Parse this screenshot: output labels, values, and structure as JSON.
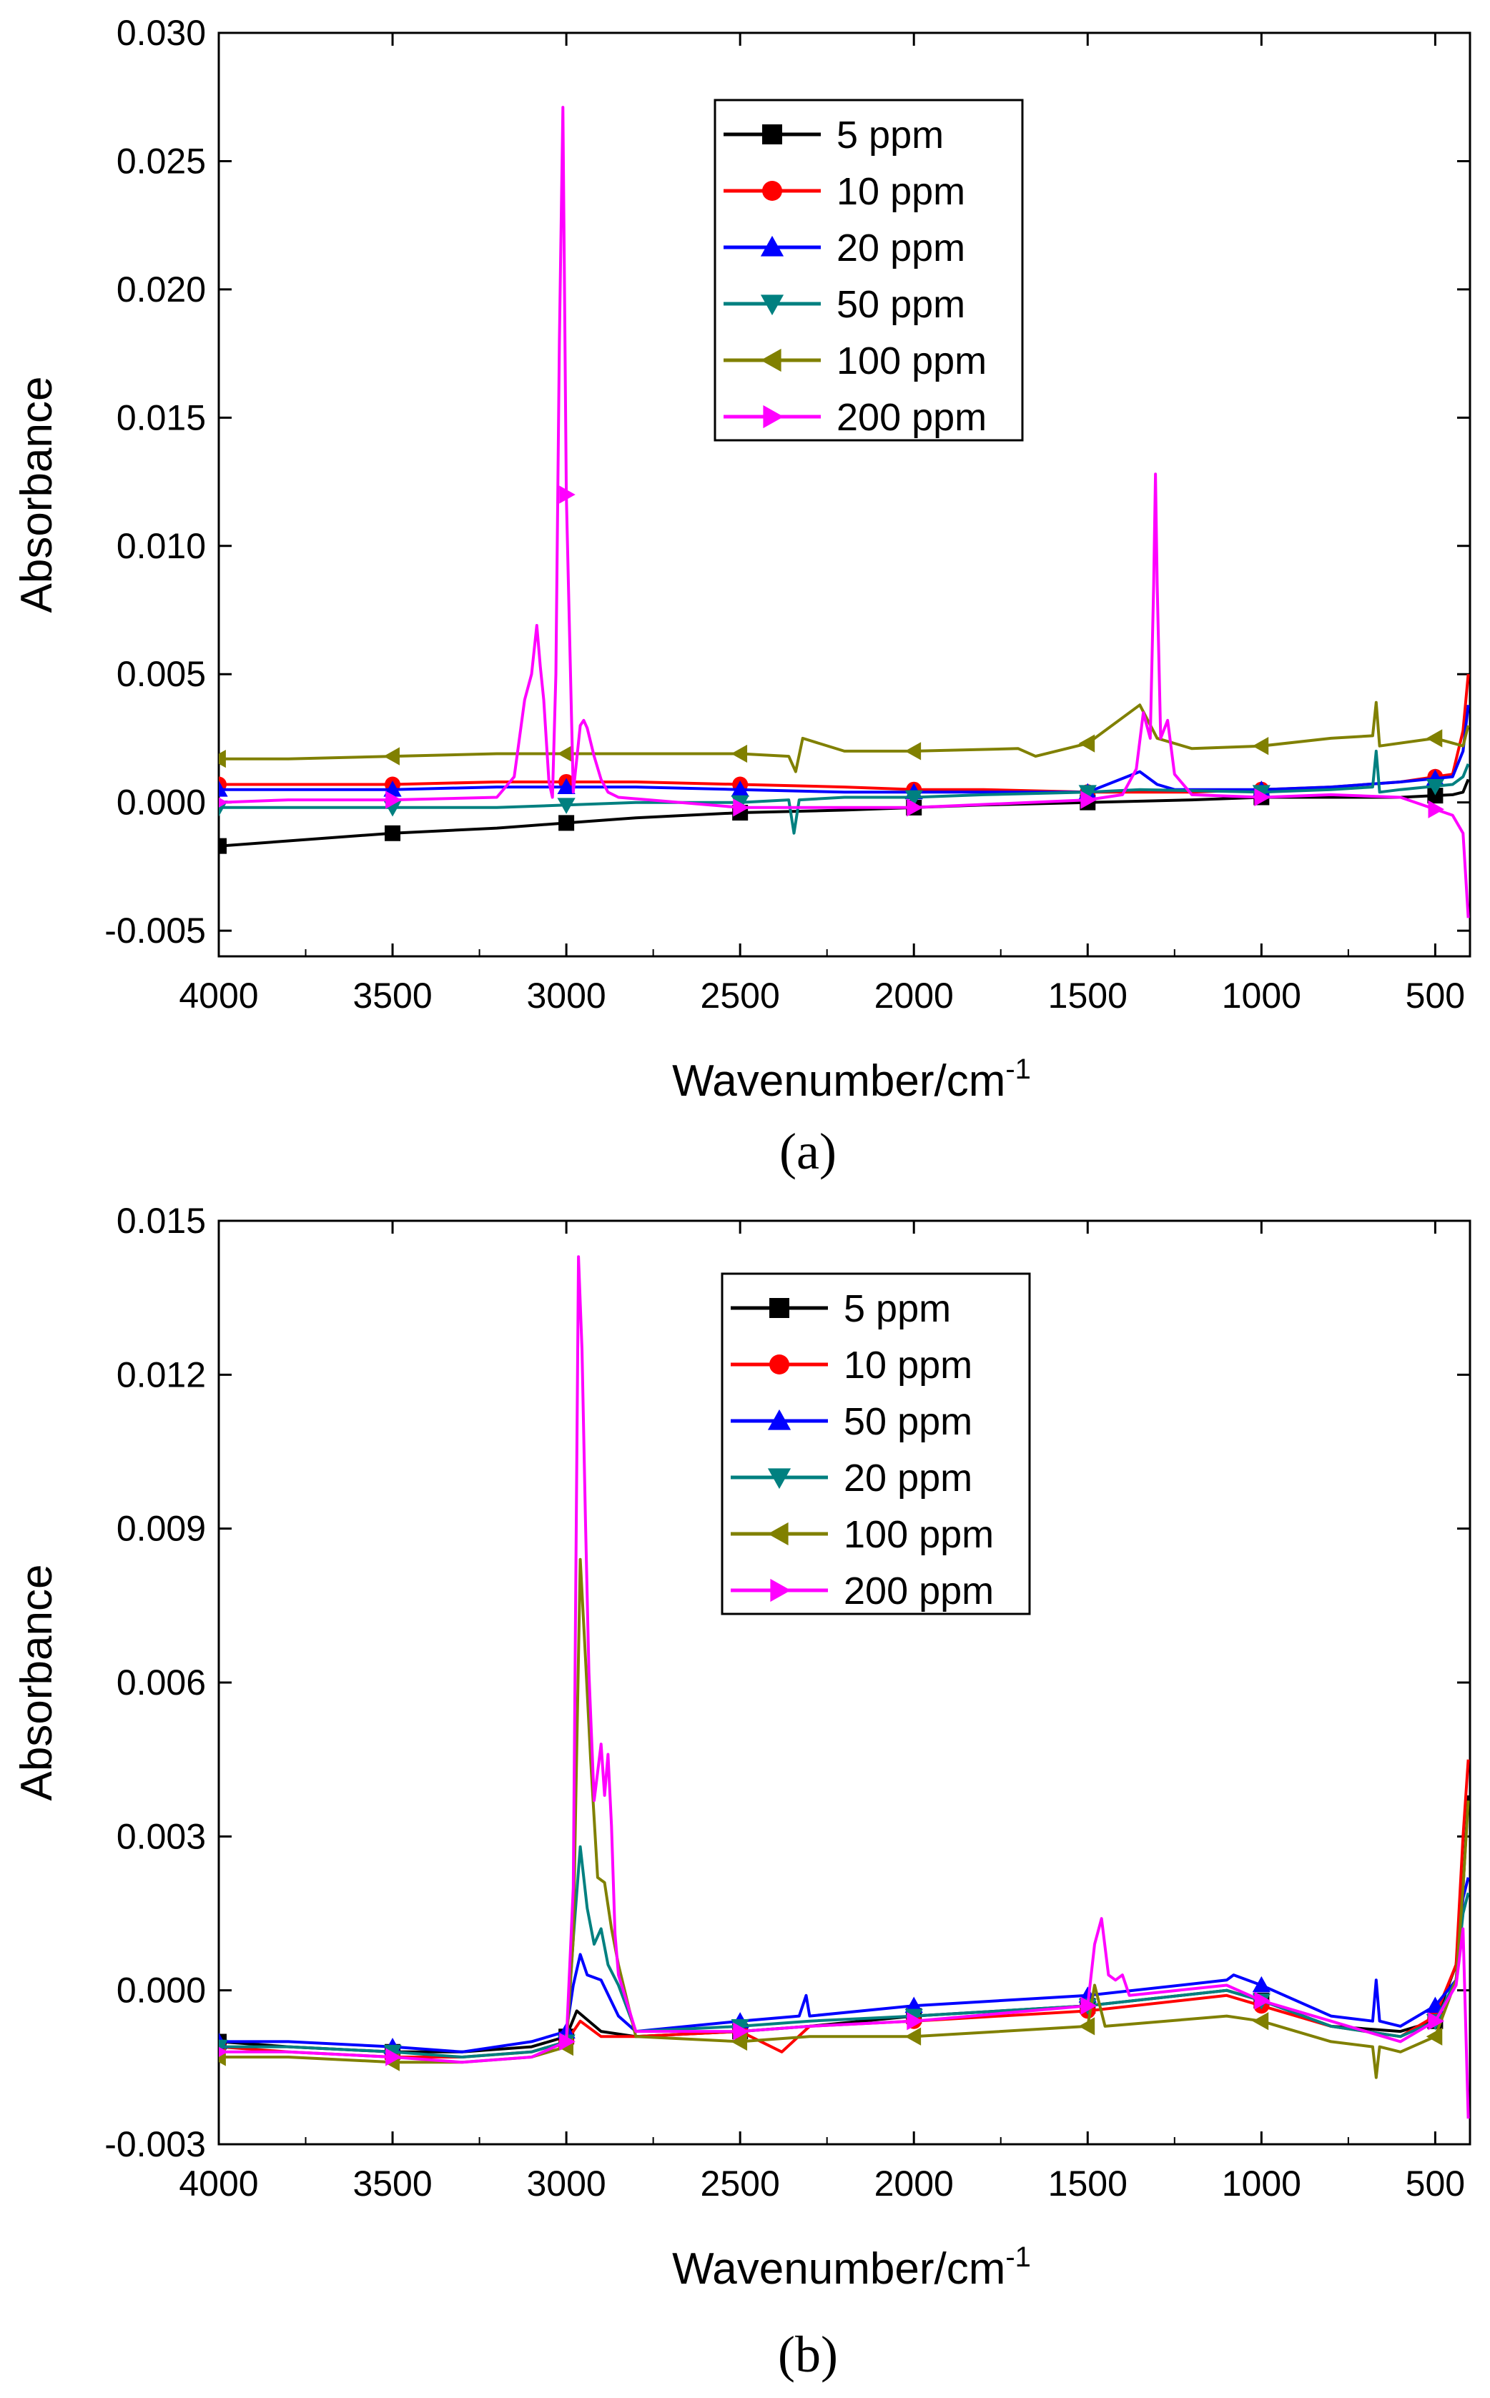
{
  "figure": {
    "caption_a": "(a)",
    "caption_b": "(b)"
  },
  "chart_data": [
    {
      "type": "line",
      "panel": "(a)",
      "xlabel": "Wavenumber/cm",
      "xlabel_sup": "-1",
      "ylabel": "Absorbance",
      "xlim": [
        4000,
        400
      ],
      "ylim": [
        -0.006,
        0.03
      ],
      "xticks": [
        4000,
        3500,
        3000,
        2500,
        2000,
        1500,
        1000,
        500
      ],
      "xtick_labels": [
        "4000",
        "3500",
        "3000",
        "2500",
        "2000",
        "1500",
        "1000",
        "500"
      ],
      "yticks": [
        -0.005,
        0,
        0.005,
        0.01,
        0.015,
        0.02,
        0.025,
        0.03
      ],
      "ytick_labels": [
        "-0.005",
        "0.000",
        "0.005",
        "0.010",
        "0.015",
        "0.020",
        "0.025",
        "0.030"
      ],
      "legend_position": "top-center",
      "series": [
        {
          "name": "5 ppm",
          "color": "#000000",
          "marker": "square",
          "x": [
            4000,
            3800,
            3500,
            3200,
            3000,
            2800,
            2500,
            2200,
            2000,
            1800,
            1500,
            1200,
            1000,
            800,
            600,
            450,
            420,
            405
          ],
          "y": [
            -0.0017,
            -0.0015,
            -0.0012,
            -0.001,
            -0.0008,
            -0.0006,
            -0.0004,
            -0.0003,
            -0.0002,
            -0.0001,
            0.0,
            0.0001,
            0.0002,
            0.0002,
            0.0002,
            0.0003,
            0.0004,
            0.0009
          ]
        },
        {
          "name": "10 ppm",
          "color": "#ff0000",
          "marker": "circle",
          "x": [
            4000,
            3800,
            3500,
            3200,
            3000,
            2800,
            2500,
            2200,
            2000,
            1800,
            1500,
            1200,
            1000,
            800,
            600,
            450,
            420,
            405
          ],
          "y": [
            0.0007,
            0.0007,
            0.0007,
            0.0008,
            0.0008,
            0.0008,
            0.0007,
            0.0006,
            0.0005,
            0.0005,
            0.0004,
            0.0004,
            0.0005,
            0.0006,
            0.0008,
            0.0011,
            0.0028,
            0.005
          ]
        },
        {
          "name": "20 ppm",
          "color": "#0000ff",
          "marker": "triangle-up",
          "x": [
            4000,
            3800,
            3500,
            3200,
            3000,
            2800,
            2500,
            2200,
            2000,
            1800,
            1500,
            1350,
            1300,
            1250,
            1000,
            800,
            600,
            450,
            420,
            405
          ],
          "y": [
            0.0005,
            0.0005,
            0.0005,
            0.0006,
            0.0006,
            0.0006,
            0.0005,
            0.0004,
            0.0004,
            0.0004,
            0.0004,
            0.0012,
            0.0007,
            0.0005,
            0.0005,
            0.0006,
            0.0008,
            0.001,
            0.002,
            0.0038
          ]
        },
        {
          "name": "50 ppm",
          "color": "#008080",
          "marker": "triangle-down",
          "x": [
            4000,
            3800,
            3500,
            3200,
            3000,
            2800,
            2500,
            2360,
            2345,
            2330,
            2200,
            2000,
            1800,
            1500,
            1350,
            1000,
            800,
            680,
            670,
            660,
            600,
            450,
            420,
            405
          ],
          "y": [
            -0.0002,
            -0.0002,
            -0.0002,
            -0.0002,
            -0.0001,
            0.0,
            0.0,
            0.0001,
            -0.0012,
            0.0001,
            0.0002,
            0.0002,
            0.0003,
            0.0004,
            0.0005,
            0.0004,
            0.0005,
            0.0006,
            0.002,
            0.0004,
            0.0005,
            0.0007,
            0.001,
            0.0015
          ]
        },
        {
          "name": "100 ppm",
          "color": "#808000",
          "marker": "triangle-left",
          "x": [
            4000,
            3800,
            3500,
            3200,
            3000,
            2800,
            2500,
            2360,
            2340,
            2320,
            2200,
            2000,
            1700,
            1650,
            1500,
            1350,
            1300,
            1200,
            1000,
            800,
            680,
            670,
            660,
            500,
            420,
            405
          ],
          "y": [
            0.0017,
            0.0017,
            0.0018,
            0.0019,
            0.0019,
            0.0019,
            0.0019,
            0.0018,
            0.0012,
            0.0025,
            0.002,
            0.002,
            0.0021,
            0.0018,
            0.0023,
            0.0038,
            0.0025,
            0.0021,
            0.0022,
            0.0025,
            0.0026,
            0.0039,
            0.0022,
            0.0025,
            0.0022,
            0.003
          ]
        },
        {
          "name": "200 ppm",
          "color": "#ff00ff",
          "marker": "triangle-right",
          "x": [
            4000,
            3800,
            3500,
            3200,
            3150,
            3120,
            3100,
            3085,
            3075,
            3065,
            3050,
            3040,
            3030,
            3020,
            3010,
            3000,
            2980,
            2960,
            2950,
            2940,
            2920,
            2900,
            2880,
            2850,
            2500,
            2000,
            1500,
            1400,
            1360,
            1340,
            1320,
            1310,
            1305,
            1300,
            1290,
            1270,
            1250,
            1200,
            1000,
            800,
            600,
            450,
            420,
            405
          ],
          "y": [
            0.0,
            0.0001,
            0.0001,
            0.0002,
            0.001,
            0.004,
            0.005,
            0.0069,
            0.0053,
            0.004,
            0.0008,
            0.0002,
            0.005,
            0.018,
            0.0271,
            0.012,
            0.0004,
            0.003,
            0.0032,
            0.0029,
            0.0018,
            0.0009,
            0.0004,
            0.0002,
            -0.0002,
            -0.0002,
            0.0001,
            0.0003,
            0.0013,
            0.0035,
            0.0025,
            0.0085,
            0.0128,
            0.0085,
            0.0025,
            0.0032,
            0.0011,
            0.0003,
            0.0002,
            0.0003,
            0.0002,
            -0.0005,
            -0.0012,
            -0.0045
          ]
        }
      ]
    },
    {
      "type": "line",
      "panel": "(b)",
      "xlabel": "Wavenumber/cm",
      "xlabel_sup": "-1",
      "ylabel": "Absorbance",
      "xlim": [
        4000,
        400
      ],
      "ylim": [
        -0.003,
        0.015
      ],
      "xticks": [
        4000,
        3500,
        3000,
        2500,
        2000,
        1500,
        1000,
        500
      ],
      "xtick_labels": [
        "4000",
        "3500",
        "3000",
        "2500",
        "2000",
        "1500",
        "1000",
        "500"
      ],
      "yticks": [
        -0.003,
        0,
        0.003,
        0.006,
        0.009,
        0.012,
        0.015
      ],
      "ytick_labels": [
        "-0.003",
        "0.000",
        "0.003",
        "0.006",
        "0.009",
        "0.012",
        "0.015"
      ],
      "legend_position": "top-center",
      "series": [
        {
          "name": "5 ppm",
          "color": "#000000",
          "marker": "square",
          "x": [
            4000,
            3800,
            3500,
            3300,
            3100,
            3000,
            2970,
            2900,
            2800,
            2500,
            2300,
            2000,
            1500,
            1100,
            1000,
            800,
            600,
            500,
            440,
            420,
            405
          ],
          "y": [
            -0.001,
            -0.0011,
            -0.0012,
            -0.0012,
            -0.0011,
            -0.0009,
            -0.0004,
            -0.0008,
            -0.0009,
            -0.0008,
            -0.0007,
            -0.0005,
            -0.0003,
            0.0,
            -0.0002,
            -0.0007,
            -0.0008,
            -0.0006,
            0.0005,
            0.002,
            0.0038
          ]
        },
        {
          "name": "10 ppm",
          "color": "#ff0000",
          "marker": "circle",
          "x": [
            4000,
            3800,
            3500,
            3300,
            3100,
            3000,
            2960,
            2900,
            2800,
            2500,
            2380,
            2300,
            2000,
            1500,
            1100,
            1000,
            800,
            600,
            500,
            440,
            420,
            405
          ],
          "y": [
            -0.0011,
            -0.0012,
            -0.0013,
            -0.0013,
            -0.0012,
            -0.001,
            -0.0006,
            -0.0009,
            -0.0009,
            -0.0008,
            -0.0012,
            -0.0007,
            -0.0006,
            -0.0004,
            -0.0001,
            -0.0003,
            -0.0007,
            -0.0009,
            -0.0005,
            0.0005,
            0.003,
            0.0045
          ]
        },
        {
          "name": "50 ppm",
          "color": "#0000ff",
          "marker": "triangle-up",
          "x": [
            4000,
            3800,
            3500,
            3300,
            3100,
            3000,
            2980,
            2960,
            2940,
            2900,
            2850,
            2800,
            2500,
            2330,
            2310,
            2300,
            2000,
            1500,
            1100,
            1080,
            1000,
            800,
            680,
            670,
            660,
            600,
            500,
            440,
            420,
            405
          ],
          "y": [
            -0.001,
            -0.001,
            -0.0011,
            -0.0012,
            -0.001,
            -0.0008,
            0.0001,
            0.0007,
            0.0003,
            0.0002,
            -0.0005,
            -0.0008,
            -0.0006,
            -0.0005,
            -0.0001,
            -0.0005,
            -0.0003,
            -0.0001,
            0.0002,
            0.0003,
            0.0001,
            -0.0005,
            -0.0006,
            0.0002,
            -0.0006,
            -0.0007,
            -0.0003,
            0.0002,
            0.0018,
            0.0022
          ]
        },
        {
          "name": "20 ppm",
          "color": "#008080",
          "marker": "triangle-down",
          "x": [
            4000,
            3800,
            3500,
            3300,
            3100,
            3000,
            2980,
            2960,
            2940,
            2920,
            2900,
            2880,
            2850,
            2800,
            2500,
            2300,
            2000,
            1500,
            1100,
            1000,
            800,
            600,
            500,
            440,
            420,
            405
          ],
          "y": [
            -0.0011,
            -0.0011,
            -0.0012,
            -0.0013,
            -0.0012,
            -0.001,
            0.001,
            0.0028,
            0.0016,
            0.0009,
            0.0012,
            0.0005,
            0.0001,
            -0.0008,
            -0.0007,
            -0.0006,
            -0.0005,
            -0.0003,
            0.0,
            -0.0002,
            -0.0007,
            -0.0009,
            -0.0006,
            0.0002,
            0.0015,
            0.0019
          ]
        },
        {
          "name": "100 ppm",
          "color": "#808000",
          "marker": "triangle-left",
          "x": [
            4000,
            3800,
            3500,
            3300,
            3100,
            3000,
            2980,
            2960,
            2945,
            2930,
            2910,
            2890,
            2870,
            2850,
            2800,
            2500,
            2300,
            2000,
            1500,
            1480,
            1450,
            1100,
            1000,
            800,
            680,
            670,
            660,
            600,
            500,
            440,
            420,
            405
          ],
          "y": [
            -0.0013,
            -0.0013,
            -0.0014,
            -0.0014,
            -0.0013,
            -0.0011,
            0.001,
            0.0084,
            0.0065,
            0.0045,
            0.0022,
            0.0021,
            0.0012,
            0.0005,
            -0.0009,
            -0.001,
            -0.0009,
            -0.0009,
            -0.0007,
            0.0001,
            -0.0007,
            -0.0005,
            -0.0006,
            -0.001,
            -0.0011,
            -0.0017,
            -0.0011,
            -0.0012,
            -0.0009,
            0.0002,
            0.002,
            0.0037
          ]
        },
        {
          "name": "200 ppm",
          "color": "#ff00ff",
          "marker": "triangle-right",
          "x": [
            4000,
            3800,
            3500,
            3300,
            3100,
            3000,
            2980,
            2965,
            2955,
            2945,
            2935,
            2920,
            2900,
            2890,
            2880,
            2870,
            2860,
            2850,
            2800,
            2500,
            2300,
            2000,
            1500,
            1480,
            1460,
            1440,
            1420,
            1400,
            1380,
            1100,
            1000,
            800,
            600,
            500,
            440,
            420,
            405
          ],
          "y": [
            -0.0012,
            -0.0012,
            -0.0013,
            -0.0014,
            -0.0013,
            -0.001,
            0.002,
            0.0143,
            0.0125,
            0.0092,
            0.0062,
            0.0037,
            0.0048,
            0.0038,
            0.0046,
            0.0032,
            0.0011,
            0.0003,
            -0.0008,
            -0.0008,
            -0.0007,
            -0.0006,
            -0.0003,
            0.0009,
            0.0014,
            0.0003,
            0.0002,
            0.0003,
            -0.0001,
            0.0001,
            -0.0002,
            -0.0006,
            -0.001,
            -0.0006,
            0.0001,
            0.0012,
            -0.0025
          ]
        }
      ]
    }
  ]
}
